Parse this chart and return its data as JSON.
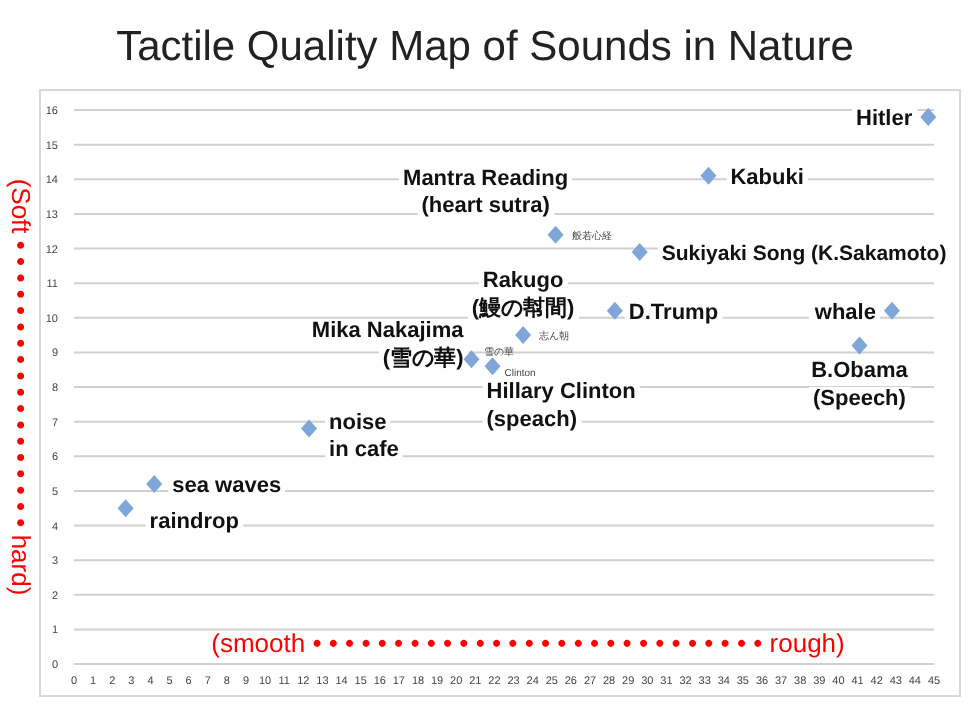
{
  "chart_data": {
    "type": "scatter",
    "title": "Tactile Quality Map of Sounds in Nature",
    "xlabel": "(smooth • • • • • • • • • • • • • • • • • • • • • • • • • • • • rough)",
    "ylabel": "(Soft • • • • • • • • • • • • • • • • • • hard)",
    "series": [
      {
        "color": "#7ea6d8",
        "x": [
          2.7,
          4.2,
          12.3,
          20.8,
          21.9,
          23.5,
          25.2,
          28.3,
          29.6,
          33.2,
          41.1,
          42.8,
          44.7
        ],
        "values": [
          4.5,
          5.2,
          6.8,
          8.8,
          8.6,
          9.5,
          12.4,
          10.2,
          11.9,
          14.1,
          9.2,
          10.2,
          15.8
        ]
      }
    ],
    "marker": "diamond",
    "grid": "y",
    "xlim": [
      0,
      45
    ],
    "xticks": [
      0,
      1,
      2,
      3,
      4,
      5,
      6,
      7,
      8,
      9,
      10,
      11,
      12,
      13,
      14,
      15,
      16,
      17,
      18,
      19,
      20,
      21,
      22,
      23,
      24,
      25,
      26,
      27,
      28,
      29,
      30,
      31,
      32,
      33,
      34,
      35,
      36,
      37,
      38,
      39,
      40,
      41,
      42,
      43,
      44,
      45
    ],
    "ylim": [
      0,
      16
    ],
    "yticks": [
      0,
      1,
      2,
      3,
      4,
      5,
      6,
      7,
      8,
      9,
      10,
      11,
      12,
      13,
      14,
      15,
      16
    ],
    "annotations": [
      {
        "text": "raindrop",
        "x": 2.7,
        "y": 4.5
      },
      {
        "text": "sea waves",
        "x": 4.2,
        "y": 5.2
      },
      {
        "text": "noise\nin cafe",
        "x": 12.3,
        "y": 6.8
      },
      {
        "text": "Mika Nakajima\n(雪の華)",
        "x": 20.8,
        "y": 8.8
      },
      {
        "text": "Hillary Clinton\n(speach)",
        "x": 21.9,
        "y": 8.6
      },
      {
        "text": "Rakugo\n(鰻の幇間)",
        "x": 23.5,
        "y": 9.5
      },
      {
        "text": "Mantra Reading\n(heart sutra)",
        "x": 25.2,
        "y": 12.4
      },
      {
        "text": "Kabuki",
        "x": 33.2,
        "y": 14.1
      },
      {
        "text": "Sukiyaki Song (K.Sakamoto)",
        "x": 29.6,
        "y": 11.9
      },
      {
        "text": "D.Trump",
        "x": 28.3,
        "y": 10.2
      },
      {
        "text": "whale",
        "x": 42.8,
        "y": 10.2
      },
      {
        "text": "B.Obama\n(Speech)",
        "x": 41.1,
        "y": 9.2
      },
      {
        "text": "Hitler",
        "x": 44.7,
        "y": 15.8
      },
      {
        "text": "般若心経",
        "x": 25.2,
        "y": 12.4
      },
      {
        "text": "志ん朝",
        "x": 23.5,
        "y": 9.5
      },
      {
        "text": "雪の華",
        "x": 20.8,
        "y": 8.8
      },
      {
        "text": "Clinton",
        "x": 21.9,
        "y": 8.6
      }
    ]
  }
}
